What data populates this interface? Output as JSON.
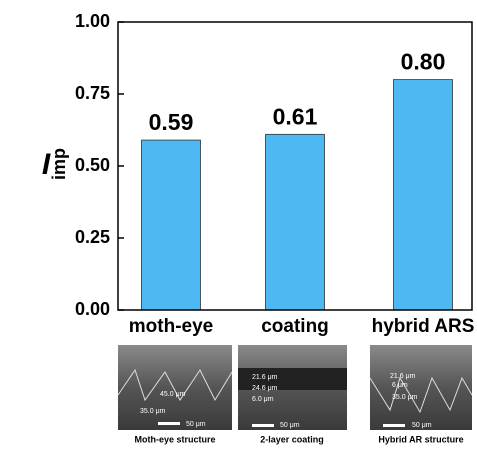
{
  "chart_data": {
    "type": "bar",
    "y_label": "I",
    "y_label_sub": "imp",
    "categories": [
      "moth-eye",
      "coating",
      "hybrid ARS"
    ],
    "values": [
      0.59,
      0.61,
      0.8
    ],
    "value_labels": [
      "0.59",
      "0.61",
      "0.80"
    ],
    "color": "#4db8f2",
    "ylim": [
      0,
      1
    ],
    "yticks": [
      {
        "value": 0,
        "label": "0.00"
      },
      {
        "value": 0.25,
        "label": "0.25"
      },
      {
        "value": 0.5,
        "label": "0.50"
      },
      {
        "value": 0.75,
        "label": "0.75"
      },
      {
        "value": 1,
        "label": "1.00"
      }
    ]
  },
  "panels": [
    {
      "caption": "Moth-eye structure",
      "scale": "50 μm",
      "notes": [
        "45.0 μm",
        "35.0 μm"
      ]
    },
    {
      "caption": "2-layer coating",
      "scale": "50 μm",
      "notes": [
        "21.6 μm",
        "24.6 μm",
        "6.0 μm"
      ]
    },
    {
      "caption": "Hybrid AR structure",
      "scale": "50 μm",
      "notes": [
        "21.6 μm",
        "6 μm",
        "35.0 μm"
      ]
    }
  ]
}
